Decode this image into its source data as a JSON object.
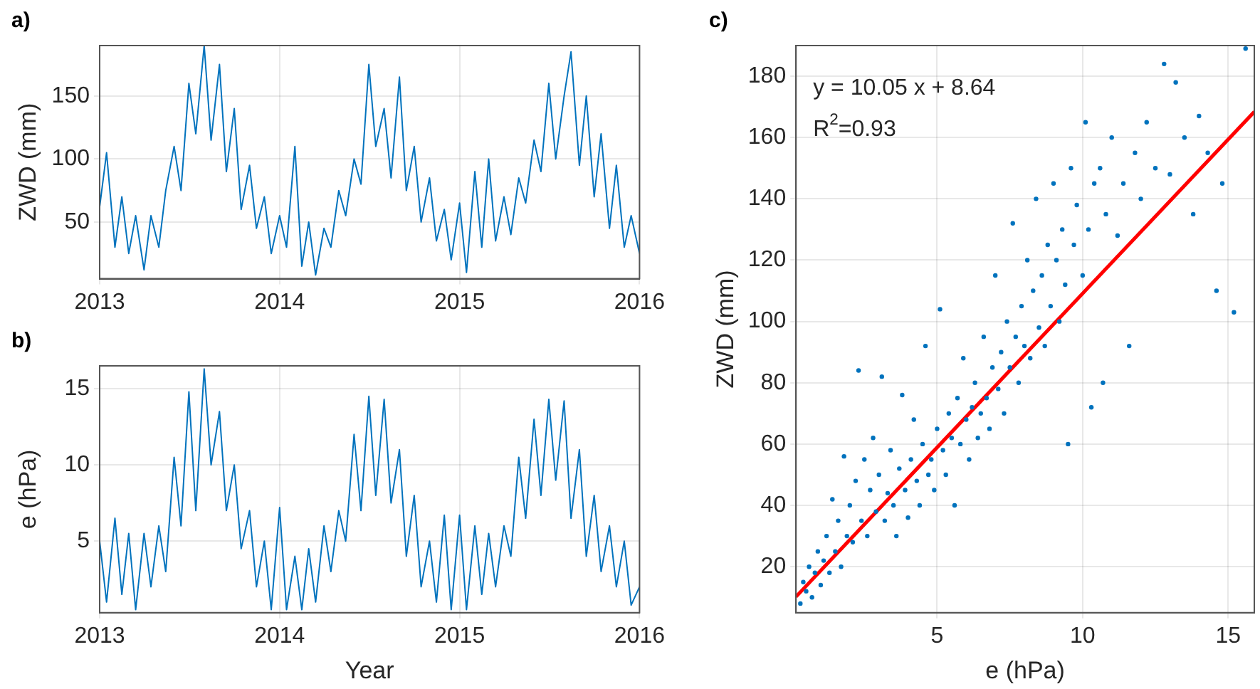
{
  "chart_data": [
    {
      "type": "line",
      "title": "a)",
      "ylabel": "ZWD (mm)",
      "marker": "none",
      "grid": true,
      "xlim": [
        "2013",
        "2016"
      ],
      "xticks": [
        "2013",
        "2014",
        "2015",
        "2016"
      ],
      "ylim": [
        5,
        190
      ],
      "yticks": [
        50,
        100,
        150
      ],
      "x": [
        "2013-01-01",
        "2013-01-15",
        "2013-02-01",
        "2013-02-15",
        "2013-03-01",
        "2013-03-15",
        "2013-04-01",
        "2013-04-15",
        "2013-05-01",
        "2013-05-15",
        "2013-06-01",
        "2013-06-15",
        "2013-07-01",
        "2013-07-15",
        "2013-08-01",
        "2013-08-15",
        "2013-09-01",
        "2013-09-15",
        "2013-10-01",
        "2013-10-15",
        "2013-11-01",
        "2013-11-15",
        "2013-12-01",
        "2013-12-15",
        "2014-01-01",
        "2014-01-15",
        "2014-02-01",
        "2014-02-15",
        "2014-03-01",
        "2014-03-15",
        "2014-04-01",
        "2014-04-15",
        "2014-05-01",
        "2014-05-15",
        "2014-06-01",
        "2014-06-15",
        "2014-07-01",
        "2014-07-15",
        "2014-08-01",
        "2014-08-15",
        "2014-09-01",
        "2014-09-15",
        "2014-10-01",
        "2014-10-15",
        "2014-11-01",
        "2014-11-15",
        "2014-12-01",
        "2014-12-15",
        "2015-01-01",
        "2015-01-15",
        "2015-02-01",
        "2015-02-15",
        "2015-03-01",
        "2015-03-15",
        "2015-04-01",
        "2015-04-15",
        "2015-05-01",
        "2015-05-15",
        "2015-06-01",
        "2015-06-15",
        "2015-07-01",
        "2015-07-15",
        "2015-08-01",
        "2015-08-15",
        "2015-09-01",
        "2015-09-15",
        "2015-10-01",
        "2015-10-15",
        "2015-11-01",
        "2015-11-15",
        "2015-12-01",
        "2015-12-15",
        "2016-01-01"
      ],
      "series": [
        {
          "color": "#0072bd",
          "values": [
            62,
            105,
            30,
            70,
            25,
            55,
            12,
            55,
            30,
            75,
            110,
            75,
            160,
            120,
            190,
            115,
            175,
            90,
            140,
            60,
            95,
            45,
            70,
            25,
            55,
            30,
            110,
            15,
            50,
            8,
            45,
            30,
            75,
            55,
            100,
            80,
            175,
            110,
            140,
            85,
            165,
            75,
            110,
            50,
            85,
            35,
            60,
            20,
            65,
            10,
            90,
            30,
            100,
            35,
            70,
            40,
            85,
            65,
            115,
            90,
            160,
            100,
            150,
            185,
            95,
            150,
            70,
            120,
            45,
            95,
            30,
            55,
            25
          ]
        }
      ]
    },
    {
      "type": "line",
      "title": "b)",
      "xlabel": "Year",
      "ylabel": "e (hPa)",
      "marker": "none",
      "grid": true,
      "xlim": [
        "2013",
        "2016"
      ],
      "xticks": [
        "2013",
        "2014",
        "2015",
        "2016"
      ],
      "ylim": [
        0.3,
        16.5
      ],
      "yticks": [
        5,
        10,
        15
      ],
      "x": [
        "2013-01-01",
        "2013-01-15",
        "2013-02-01",
        "2013-02-15",
        "2013-03-01",
        "2013-03-15",
        "2013-04-01",
        "2013-04-15",
        "2013-05-01",
        "2013-05-15",
        "2013-06-01",
        "2013-06-15",
        "2013-07-01",
        "2013-07-15",
        "2013-08-01",
        "2013-08-15",
        "2013-09-01",
        "2013-09-15",
        "2013-10-01",
        "2013-10-15",
        "2013-11-01",
        "2013-11-15",
        "2013-12-01",
        "2013-12-15",
        "2014-01-01",
        "2014-01-15",
        "2014-02-01",
        "2014-02-15",
        "2014-03-01",
        "2014-03-15",
        "2014-04-01",
        "2014-04-15",
        "2014-05-01",
        "2014-05-15",
        "2014-06-01",
        "2014-06-15",
        "2014-07-01",
        "2014-07-15",
        "2014-08-01",
        "2014-08-15",
        "2014-09-01",
        "2014-09-15",
        "2014-10-01",
        "2014-10-15",
        "2014-11-01",
        "2014-11-15",
        "2014-12-01",
        "2014-12-15",
        "2015-01-01",
        "2015-01-15",
        "2015-02-01",
        "2015-02-15",
        "2015-03-01",
        "2015-03-15",
        "2015-04-01",
        "2015-04-15",
        "2015-05-01",
        "2015-05-15",
        "2015-06-01",
        "2015-06-15",
        "2015-07-01",
        "2015-07-15",
        "2015-08-01",
        "2015-08-15",
        "2015-09-01",
        "2015-09-15",
        "2015-10-01",
        "2015-10-15",
        "2015-11-01",
        "2015-11-15",
        "2015-12-01",
        "2015-12-15",
        "2016-01-01"
      ],
      "series": [
        {
          "color": "#0072bd",
          "values": [
            5,
            1,
            6.5,
            1.5,
            5.5,
            0.5,
            5.5,
            2,
            6,
            3,
            10.5,
            6,
            14.8,
            7,
            16.3,
            10,
            13.5,
            7,
            10,
            4.5,
            7,
            2,
            5,
            0.5,
            7.2,
            0.5,
            4,
            0.5,
            4.5,
            1,
            6,
            3,
            7,
            5,
            12,
            7,
            14.5,
            8,
            14.3,
            7.5,
            11,
            4,
            8,
            2,
            5,
            1,
            6.7,
            0.5,
            6.7,
            0.5,
            6,
            1.5,
            5.5,
            2,
            6,
            4,
            10.5,
            6.5,
            13,
            8,
            14.3,
            9,
            14.2,
            6.5,
            11,
            4,
            8,
            3,
            6,
            2,
            5,
            0.8,
            2
          ]
        }
      ]
    },
    {
      "type": "scatter",
      "title": "c)",
      "xlabel": "e (hPa)",
      "ylabel": "ZWD (mm)",
      "grid": true,
      "xlim": [
        0.15,
        15.9
      ],
      "xticks": [
        5,
        10,
        15
      ],
      "ylim": [
        5,
        190
      ],
      "yticks": [
        20,
        40,
        60,
        80,
        100,
        120,
        140,
        160,
        180
      ],
      "annotations": [
        "y = 10.05 x + 8.64",
        "R$^{2}$=0.93"
      ],
      "series": [
        {
          "color": "#0072bd",
          "marker": "circle",
          "x": [
            0.3,
            0.4,
            0.5,
            0.6,
            0.7,
            0.8,
            0.9,
            1.0,
            1.1,
            1.2,
            1.3,
            1.4,
            1.5,
            1.6,
            1.7,
            1.8,
            1.9,
            2.0,
            2.1,
            2.2,
            2.3,
            2.4,
            2.5,
            2.6,
            2.7,
            2.8,
            2.9,
            3.0,
            3.1,
            3.2,
            3.3,
            3.4,
            3.5,
            3.6,
            3.7,
            3.8,
            3.9,
            4.0,
            4.1,
            4.2,
            4.3,
            4.4,
            4.5,
            4.6,
            4.7,
            4.8,
            4.9,
            5.0,
            5.1,
            5.2,
            5.3,
            5.4,
            5.5,
            5.6,
            5.7,
            5.8,
            5.9,
            6.0,
            6.1,
            6.2,
            6.3,
            6.4,
            6.5,
            6.6,
            6.7,
            6.8,
            6.9,
            7.0,
            7.1,
            7.2,
            7.3,
            7.4,
            7.5,
            7.6,
            7.7,
            7.8,
            7.9,
            8.0,
            8.1,
            8.2,
            8.3,
            8.4,
            8.5,
            8.6,
            8.7,
            8.8,
            8.9,
            9.0,
            9.1,
            9.2,
            9.3,
            9.4,
            9.5,
            9.6,
            9.7,
            9.8,
            10.0,
            10.1,
            10.2,
            10.3,
            10.4,
            10.6,
            10.7,
            10.8,
            11.0,
            11.2,
            11.4,
            11.6,
            11.8,
            12.0,
            12.2,
            12.5,
            12.8,
            13.0,
            13.2,
            13.5,
            13.8,
            14.0,
            14.3,
            14.6,
            14.8,
            15.2,
            15.6
          ],
          "values": [
            8,
            15,
            12,
            20,
            10,
            18,
            25,
            14,
            22,
            30,
            18,
            42,
            25,
            35,
            20,
            56,
            30,
            40,
            28,
            48,
            84,
            35,
            55,
            30,
            45,
            62,
            38,
            50,
            82,
            35,
            44,
            58,
            40,
            30,
            52,
            76,
            45,
            36,
            55,
            68,
            48,
            40,
            60,
            92,
            50,
            55,
            45,
            65,
            104,
            58,
            50,
            70,
            62,
            40,
            75,
            60,
            88,
            68,
            55,
            72,
            80,
            62,
            70,
            95,
            75,
            65,
            85,
            115,
            78,
            90,
            70,
            100,
            85,
            132,
            95,
            80,
            105,
            92,
            120,
            88,
            110,
            140,
            98,
            115,
            92,
            125,
            105,
            145,
            120,
            100,
            130,
            112,
            60,
            150,
            125,
            138,
            115,
            165,
            130,
            72,
            145,
            150,
            80,
            135,
            160,
            128,
            145,
            92,
            155,
            140,
            165,
            150,
            184,
            148,
            178,
            160,
            135,
            167,
            155,
            110,
            145,
            103,
            189
          ]
        },
        {
          "type": "line",
          "marker": "none",
          "color": "#ff0000",
          "x": [
            0.15,
            15.9
          ],
          "values": [
            10.2,
            168.4
          ]
        }
      ]
    }
  ]
}
